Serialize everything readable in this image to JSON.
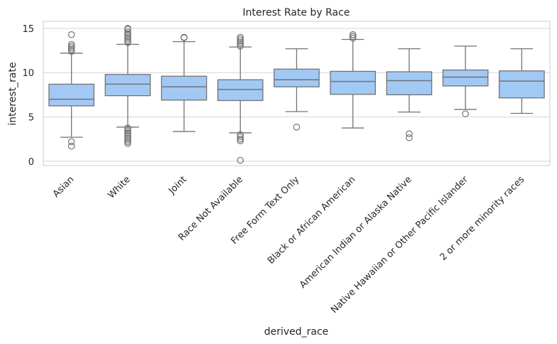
{
  "chart_data": {
    "type": "box",
    "title": "Interest Rate by Race",
    "xlabel": "derived_race",
    "ylabel": "interest_rate",
    "ylim": [
      -0.5,
      15.8
    ],
    "yticks": [
      0,
      5,
      10,
      15
    ],
    "grid": true,
    "colors": {
      "box_fill": "#a1c9f4",
      "line": "#737373",
      "grid": "#d6d6d6",
      "frame": "#cccccc"
    },
    "categories": [
      "Asian",
      "White",
      "Joint",
      "Race Not Available",
      "Free Form Text Only",
      "Black or African American",
      "American Indian or Alaska Native",
      "Native Hawaiian or Other Pacific Islander",
      "2 or more minority races"
    ],
    "boxes": [
      {
        "q1": 6.25,
        "median": 7.0,
        "q3": 8.7,
        "whisker_low": 2.7,
        "whisker_high": 12.2,
        "outliers": [
          1.7,
          2.2,
          12.4,
          12.6,
          12.8,
          13.0,
          13.2,
          14.3
        ]
      },
      {
        "q1": 7.4,
        "median": 8.7,
        "q3": 9.8,
        "whisker_low": 3.85,
        "whisker_high": 13.2,
        "outliers": [
          2.0,
          2.2,
          2.4,
          2.6,
          2.8,
          3.0,
          3.2,
          3.4,
          3.6,
          3.75,
          13.4,
          13.6,
          13.8,
          14.0,
          14.2,
          14.4,
          14.6,
          14.9,
          15.0
        ]
      },
      {
        "q1": 6.9,
        "median": 8.4,
        "q3": 9.6,
        "whisker_low": 3.35,
        "whisker_high": 13.5,
        "outliers": [
          14.0,
          13.95
        ]
      },
      {
        "q1": 6.85,
        "median": 8.1,
        "q3": 9.2,
        "whisker_low": 3.2,
        "whisker_high": 12.9,
        "outliers": [
          0.1,
          2.3,
          2.5,
          2.75,
          3.0,
          13.0,
          13.2,
          13.4,
          13.6,
          13.8,
          14.0
        ]
      },
      {
        "q1": 8.4,
        "median": 9.2,
        "q3": 10.4,
        "whisker_low": 5.6,
        "whisker_high": 12.7,
        "outliers": [
          3.85
        ]
      },
      {
        "q1": 7.55,
        "median": 9.0,
        "q3": 10.15,
        "whisker_low": 3.75,
        "whisker_high": 13.75,
        "outliers": [
          13.9,
          14.1,
          14.3
        ]
      },
      {
        "q1": 7.5,
        "median": 9.1,
        "q3": 10.1,
        "whisker_low": 5.55,
        "whisker_high": 12.7,
        "outliers": [
          2.65,
          3.1
        ]
      },
      {
        "q1": 8.5,
        "median": 9.5,
        "q3": 10.3,
        "whisker_low": 5.85,
        "whisker_high": 13.0,
        "outliers": [
          5.35
        ]
      },
      {
        "q1": 7.15,
        "median": 9.05,
        "q3": 10.2,
        "whisker_low": 5.4,
        "whisker_high": 12.7,
        "outliers": []
      }
    ]
  }
}
